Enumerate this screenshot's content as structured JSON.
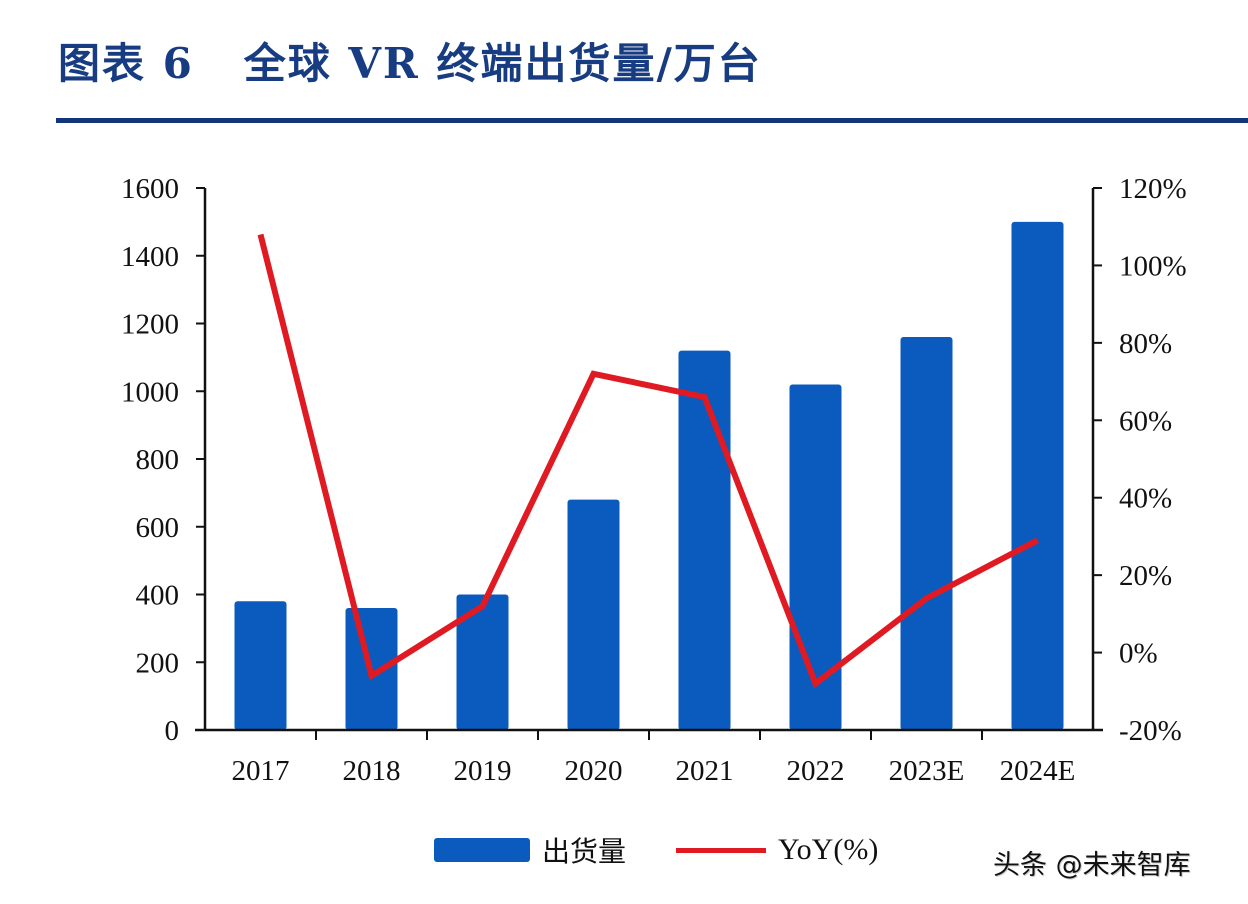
{
  "header": {
    "title": "图表 6   全球 VR 终端出货量/万台"
  },
  "colors": {
    "bar": "#0a5bbd",
    "line": "#e01a22",
    "title": "#173c82",
    "divider": "#15357a"
  },
  "legend": {
    "bar_label": "出货量",
    "line_label": "YoY(%)"
  },
  "watermark": "头条 @未来智库",
  "chart_data": {
    "type": "bar",
    "title": "全球 VR 终端出货量/万台",
    "categories": [
      "2017",
      "2018",
      "2019",
      "2020",
      "2021",
      "2022",
      "2023E",
      "2024E"
    ],
    "series": [
      {
        "name": "出货量",
        "type": "bar",
        "axis": "left",
        "values": [
          380,
          360,
          400,
          680,
          1120,
          1020,
          1160,
          1500
        ]
      },
      {
        "name": "YoY(%)",
        "type": "line",
        "axis": "right",
        "values": [
          108,
          -6,
          12,
          72,
          66,
          -8,
          14,
          29
        ]
      }
    ],
    "y_left": {
      "range": [
        0,
        1600
      ],
      "ticks": [
        0,
        200,
        400,
        600,
        800,
        1000,
        1200,
        1400,
        1600
      ],
      "tick_labels": [
        "0",
        "200",
        "400",
        "600",
        "800",
        "1000",
        "1200",
        "1400",
        "1600"
      ]
    },
    "y_right": {
      "range": [
        -20,
        120
      ],
      "ticks": [
        -20,
        0,
        20,
        40,
        60,
        80,
        100,
        120
      ],
      "tick_labels": [
        "-20%",
        "0%",
        "20%",
        "40%",
        "60%",
        "80%",
        "100%",
        "120%"
      ]
    },
    "xlabel": "",
    "ylabel": "",
    "grid": false,
    "legend_position": "bottom"
  }
}
